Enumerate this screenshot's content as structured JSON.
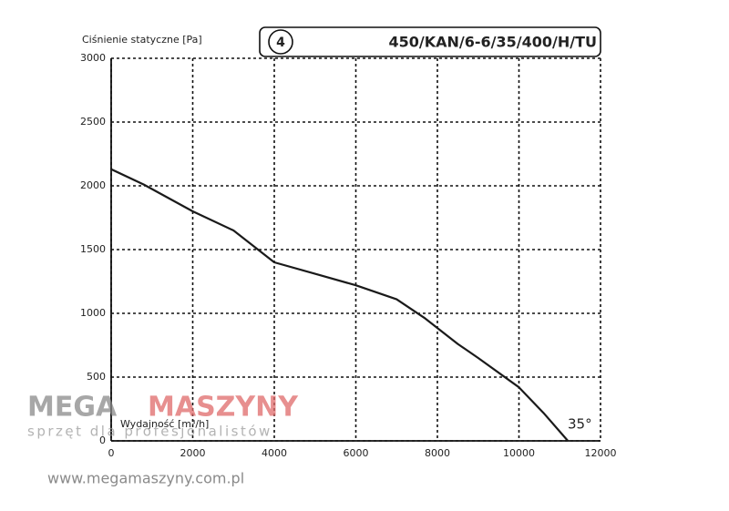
{
  "chart_data": {
    "type": "line",
    "y_label": "Ciśnienie statyczne [Pa]",
    "x_label": "Wydajność [m³/h]",
    "badge": "4",
    "title": "450/KAN/6-6/35/400/H/TU",
    "annotation": "35°",
    "x": [
      0,
      800,
      2000,
      3000,
      4000,
      5000,
      6000,
      7000,
      7700,
      8500,
      9000,
      10000,
      10600,
      11200
    ],
    "series": [
      {
        "name": "35°",
        "color": "#1a1a1a",
        "values": [
          2130,
          2010,
          1800,
          1650,
          1400,
          1310,
          1220,
          1110,
          960,
          760,
          650,
          420,
          220,
          0
        ]
      }
    ],
    "xlim": [
      0,
      12000
    ],
    "xticks": [
      0,
      2000,
      4000,
      6000,
      8000,
      10000,
      12000
    ],
    "ylim": [
      0,
      3000
    ],
    "yticks": [
      0,
      500,
      1000,
      1500,
      2000,
      2500,
      3000
    ],
    "grid": true
  },
  "watermark": {
    "brand_left": "MEGA",
    "brand_right": "MASZYNY",
    "tagline": "sprzęt dla profesjonalistów",
    "url": "www.megamaszyny.com.pl"
  }
}
